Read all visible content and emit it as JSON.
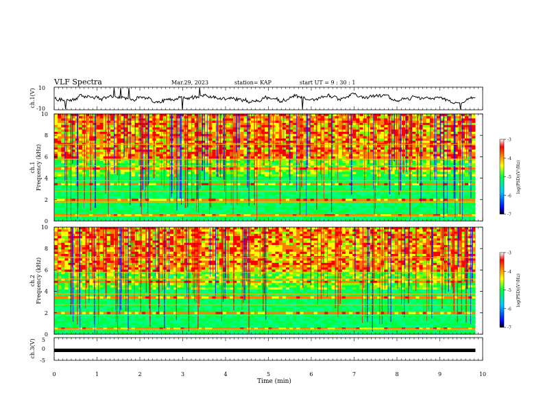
{
  "header": {
    "title": "VLF Spectra",
    "date": "Mar.29, 2023",
    "station": "station= KAP",
    "start": "start  UT =  9 : 30 : 1"
  },
  "chart_data": [
    {
      "type": "line",
      "panel": "ch1_waveform",
      "ylabel": "ch.1(V)",
      "ylim": [
        -10,
        10
      ],
      "yticks": [
        "10",
        "-10"
      ],
      "xlim": [
        0,
        10
      ],
      "x_extent": [
        0,
        9.83
      ]
    },
    {
      "type": "heatmap",
      "panel": "ch1_spectrogram",
      "ylabel": "ch.1\nFrequency (kHz)",
      "ylim": [
        0,
        10
      ],
      "yticks": [
        "0",
        "2",
        "4",
        "6",
        "8",
        "10"
      ],
      "xlim": [
        0,
        10
      ],
      "x_extent": [
        0,
        9.83
      ],
      "colorbar": {
        "label": "log(PSD)(V²/Hz)",
        "range": [
          -7,
          -3
        ],
        "ticks": [
          "-3",
          "-4",
          "-5",
          "-6",
          "-7"
        ],
        "colormap": "rainbow"
      }
    },
    {
      "type": "heatmap",
      "panel": "ch2_spectrogram",
      "ylabel": "ch.2\nFrequency (kHz)",
      "ylim": [
        0,
        10
      ],
      "yticks": [
        "0",
        "2",
        "4",
        "6",
        "8",
        "10"
      ],
      "xlim": [
        0,
        10
      ],
      "x_extent": [
        0,
        9.83
      ],
      "colorbar": {
        "label": "log(PSD)(V²/Hz)",
        "range": [
          -7,
          -3
        ],
        "ticks": [
          "-3",
          "-4",
          "-5",
          "-6",
          "-7"
        ],
        "colormap": "rainbow"
      }
    },
    {
      "type": "line",
      "panel": "ch3_waveform",
      "ylabel": "ch.3(V)",
      "ylim": [
        -5,
        5
      ],
      "yticks": [
        "5",
        "0",
        "-5"
      ],
      "xlim": [
        0,
        10
      ],
      "x_extent": [
        0,
        9.83
      ],
      "level": -0.5
    }
  ],
  "xaxis": {
    "label": "Time (min)",
    "ticks": [
      "0",
      "1",
      "2",
      "3",
      "4",
      "5",
      "6",
      "7",
      "8",
      "9",
      "10"
    ]
  },
  "colors": {
    "colormap_stops": [
      "#000000",
      "#0000ff",
      "#00c8ff",
      "#00ff40",
      "#ffff00",
      "#ff8000",
      "#ff0000",
      "#ffffff"
    ],
    "axis": "#000000"
  }
}
